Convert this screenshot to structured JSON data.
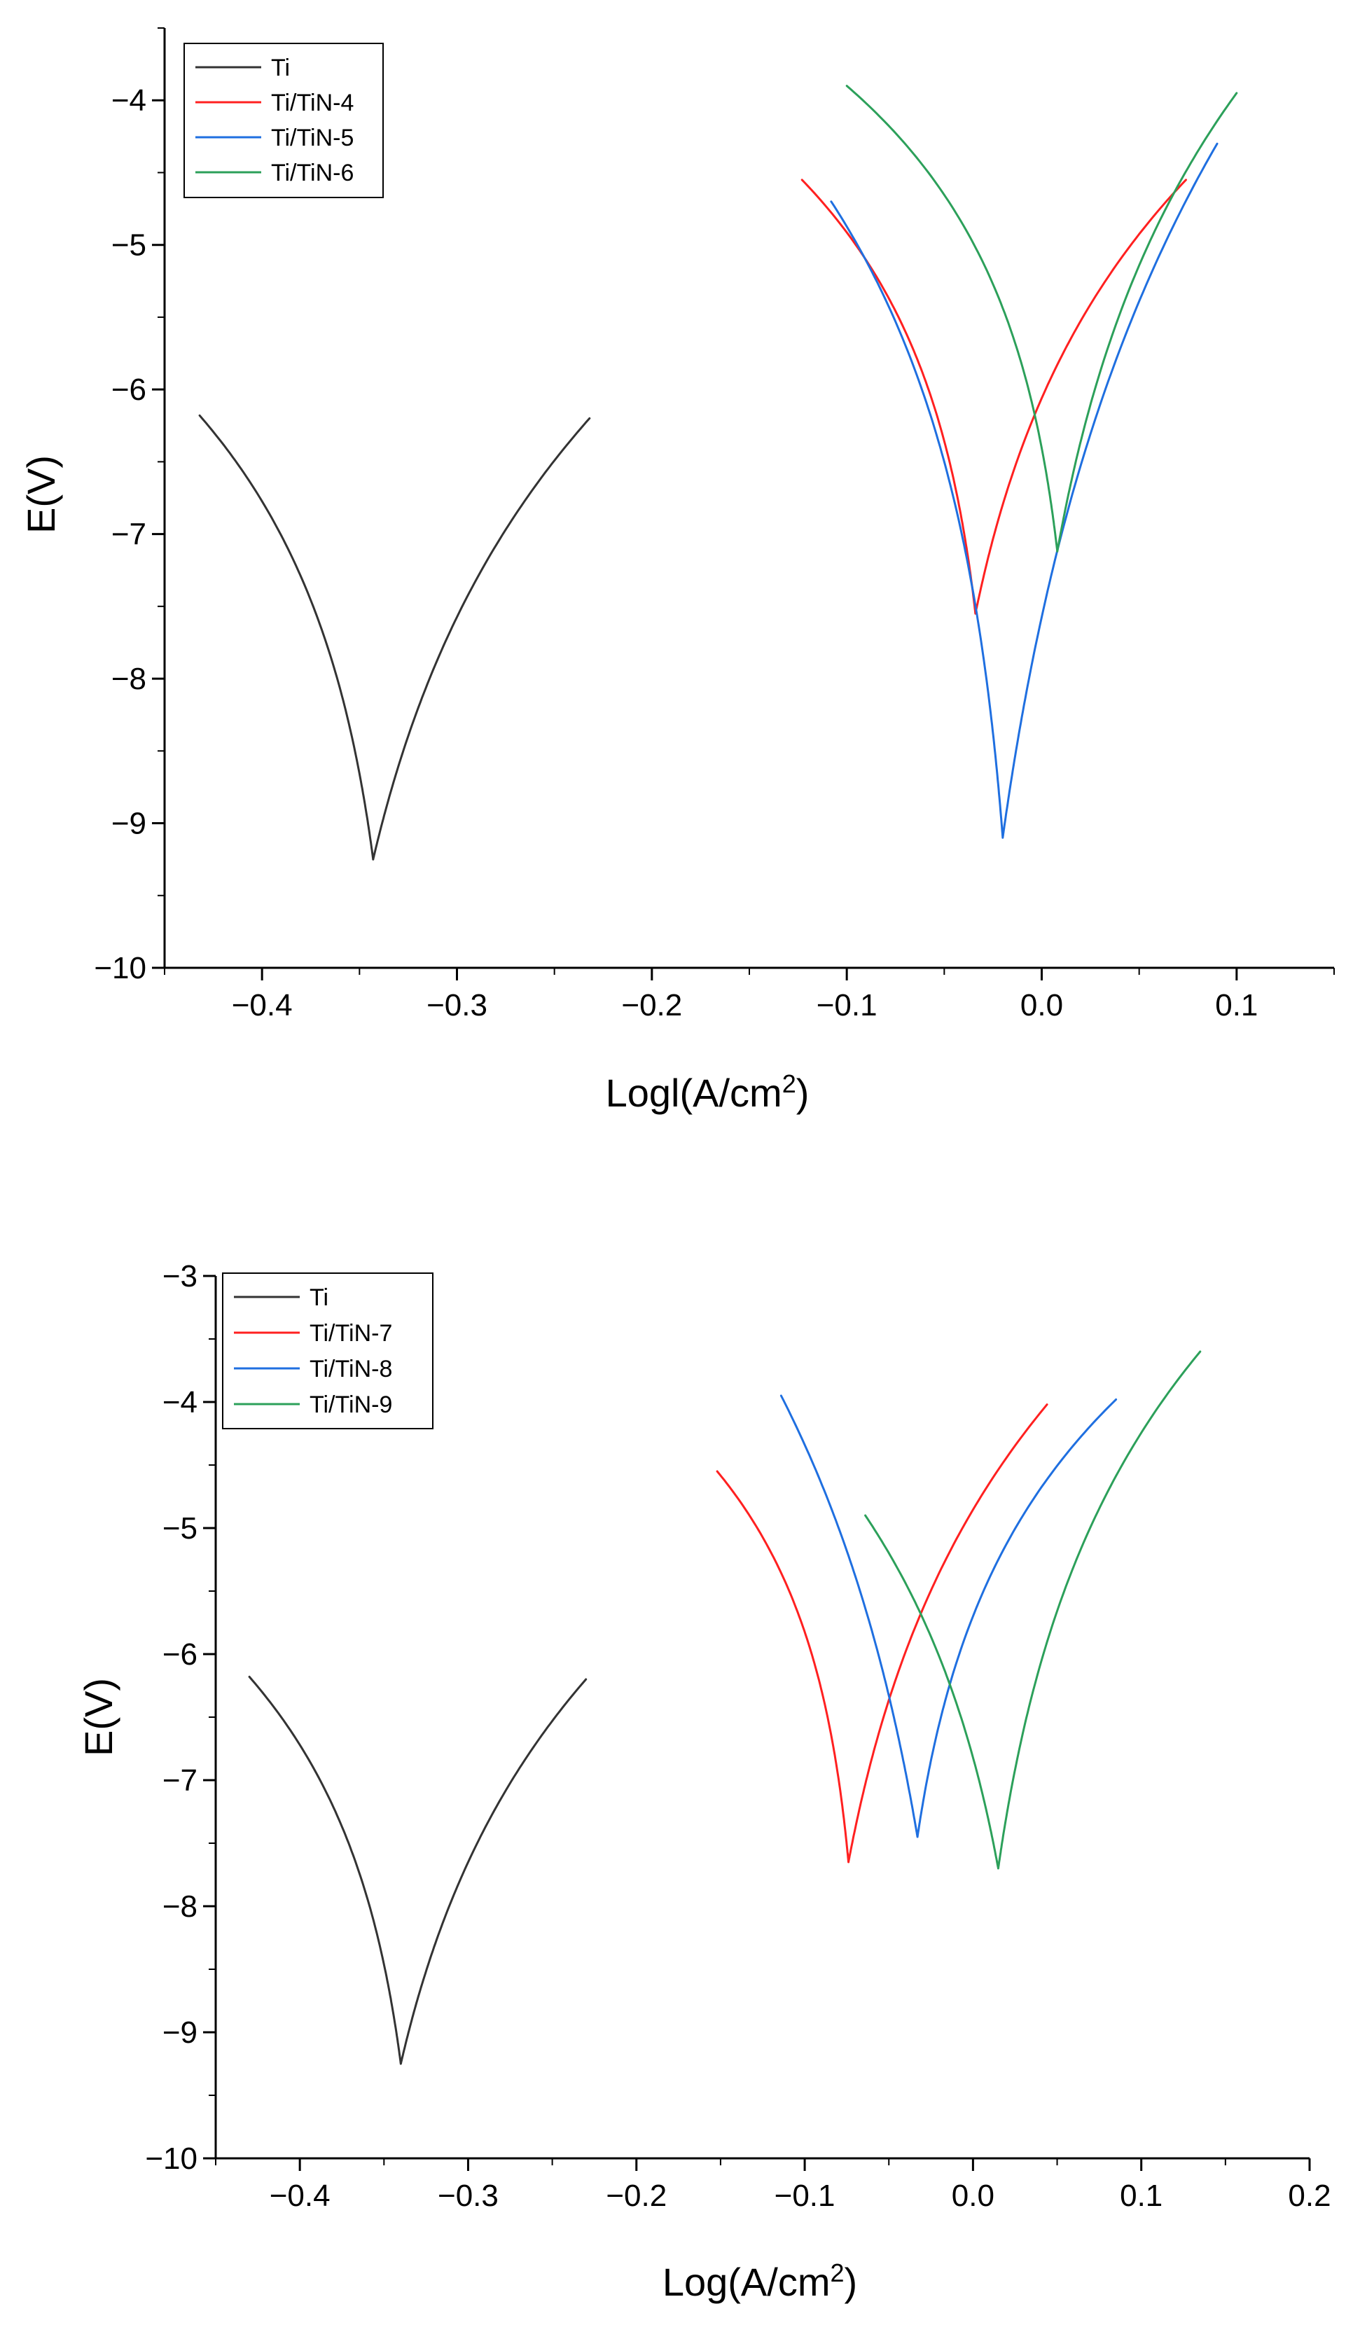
{
  "chart_data": [
    {
      "type": "line",
      "title": "",
      "xlabel_main": "Logl(A/cm",
      "xlabel_sup": "2",
      "xlabel_tail": ")",
      "ylabel": "E(V)",
      "xlim": [
        -0.45,
        0.15
      ],
      "ylim": [
        -10,
        -3.5
      ],
      "xticks": [
        -0.4,
        -0.3,
        -0.2,
        -0.1,
        0.0,
        0.1
      ],
      "xtick_labels": [
        "−0.4",
        "−0.3",
        "−0.2",
        "−0.1",
        "0.0",
        "0.1"
      ],
      "yticks": [
        -10,
        -9,
        -8,
        -7,
        -6,
        -5,
        -4
      ],
      "ytick_labels": [
        "−10",
        "−9",
        "−8",
        "−7",
        "−6",
        "−5",
        "−4"
      ],
      "grid": false,
      "legend_position": "top-left",
      "series": [
        {
          "name": "Ti",
          "color": "#333333",
          "x_corr": -0.343,
          "e_corr": -9.25,
          "left": [
            -0.432,
            -6.18
          ],
          "right": [
            -0.232,
            -6.2
          ],
          "kl": 0.016,
          "kr": 0.04
        },
        {
          "name": "Ti/TiN-4",
          "color": "#ff2020",
          "x_corr": -0.034,
          "e_corr": -7.55,
          "left": [
            -0.123,
            -4.55
          ],
          "right": [
            0.074,
            -4.55
          ],
          "kl": 0.012,
          "kr": 0.03
        },
        {
          "name": "Ti/TiN-5",
          "color": "#1f6fe0",
          "x_corr": -0.02,
          "e_corr": -9.1,
          "left": [
            -0.108,
            -4.7
          ],
          "right": [
            0.09,
            -4.3
          ],
          "kl": 0.012,
          "kr": 0.035
        },
        {
          "name": "Ti/TiN-6",
          "color": "#2ca05a",
          "x_corr": 0.008,
          "e_corr": -7.12,
          "left": [
            -0.1,
            -3.9
          ],
          "right": [
            0.1,
            -3.95
          ],
          "kl": 0.012,
          "kr": 0.03
        }
      ]
    },
    {
      "type": "line",
      "title": "",
      "xlabel_main": "Log(A/cm",
      "xlabel_sup": "2",
      "xlabel_tail": ")",
      "ylabel": "E(V)",
      "xlim": [
        -0.45,
        0.2
      ],
      "ylim": [
        -10,
        -3
      ],
      "xticks": [
        -0.4,
        -0.3,
        -0.2,
        -0.1,
        0.0,
        0.1,
        0.2
      ],
      "xtick_labels": [
        "−0.4",
        "−0.3",
        "−0.2",
        "−0.1",
        "0.0",
        "0.1",
        "0.2"
      ],
      "yticks": [
        -10,
        -9,
        -8,
        -7,
        -6,
        -5,
        -4,
        -3
      ],
      "ytick_labels": [
        "−10",
        "−9",
        "−8",
        "−7",
        "−6",
        "−5",
        "−4",
        "−3"
      ],
      "grid": false,
      "legend_position": "top-left",
      "series": [
        {
          "name": "Ti",
          "color": "#333333",
          "x_corr": -0.34,
          "e_corr": -9.25,
          "left": [
            -0.43,
            -6.18
          ],
          "right": [
            -0.23,
            -6.2
          ],
          "kl": 0.016,
          "kr": 0.04
        },
        {
          "name": "Ti/TiN-7",
          "color": "#ff2020",
          "x_corr": -0.074,
          "e_corr": -7.65,
          "left": [
            -0.152,
            -4.55
          ],
          "right": [
            0.044,
            -4.02
          ],
          "kl": 0.01,
          "kr": 0.035
        },
        {
          "name": "Ti/TiN-8",
          "color": "#1f6fe0",
          "x_corr": -0.033,
          "e_corr": -7.45,
          "left": [
            -0.114,
            -3.95
          ],
          "right": [
            0.085,
            -3.98
          ],
          "kl": 0.04,
          "kr": 0.02
        },
        {
          "name": "Ti/TiN-9",
          "color": "#2ca05a",
          "x_corr": 0.015,
          "e_corr": -7.7,
          "left": [
            -0.064,
            -4.9
          ],
          "right": [
            0.135,
            -3.6
          ],
          "kl": 0.03,
          "kr": 0.025
        }
      ]
    }
  ]
}
